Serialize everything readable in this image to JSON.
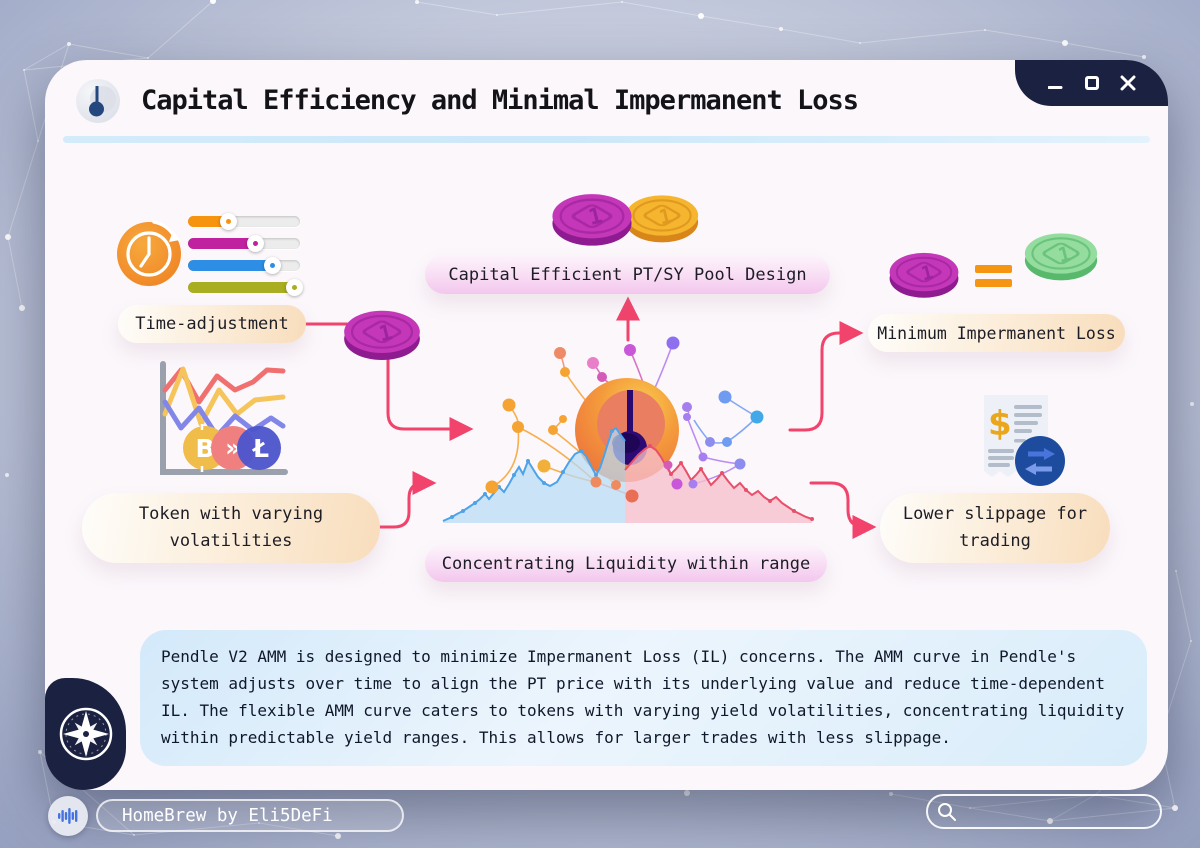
{
  "window": {
    "title": "Capital Efficiency and Minimal Impermanent Loss"
  },
  "nodes": {
    "time_adjustment": "Time-adjustment",
    "capital_efficient": "Capital Efficient PT/SY Pool Design",
    "minimum_impermanent_loss": "Minimum Impermanent Loss",
    "token_volatility": {
      "line1": "Token with varying",
      "line2": "volatilities"
    },
    "concentrating_liquidity": "Concentrating Liquidity within range",
    "lower_slippage": {
      "line1": "Lower slippage for",
      "line2": "trading"
    }
  },
  "coin_numeral": "1",
  "sliders": [
    {
      "color": "#f6930f",
      "percent": 34
    },
    {
      "color": "#c0219f",
      "percent": 58
    },
    {
      "color": "#2e8de4",
      "percent": 73
    },
    {
      "color": "#a9ad20",
      "percent": 97
    }
  ],
  "description": "Pendle V2 AMM is designed to minimize Impermanent Loss (IL) concerns. The AMM curve in Pendle's system adjusts over time to align the PT price with its underlying value and reduce time-dependent IL. The flexible AMM curve caters to tokens with varying yield volatilities, concentrating liquidity within predictable yield ranges. This allows for larger trades with less slippage.",
  "footer": {
    "credit": "HomeBrew by Eli5DeFi",
    "search_value": ""
  },
  "colors": {
    "connector": "#f1436b",
    "navy": "#1b2140",
    "card": "#fbf7fb"
  },
  "icons": {
    "title": "pendulum-gauge",
    "left_top": "clock-with-sliders",
    "left_bottom": "volatility-chart-coins",
    "center": "amm-gauge-network",
    "right_bottom": "receipt-swap",
    "corner": "compass",
    "footer_left": "voice-waveform",
    "footer_right": "search-magnifier"
  }
}
